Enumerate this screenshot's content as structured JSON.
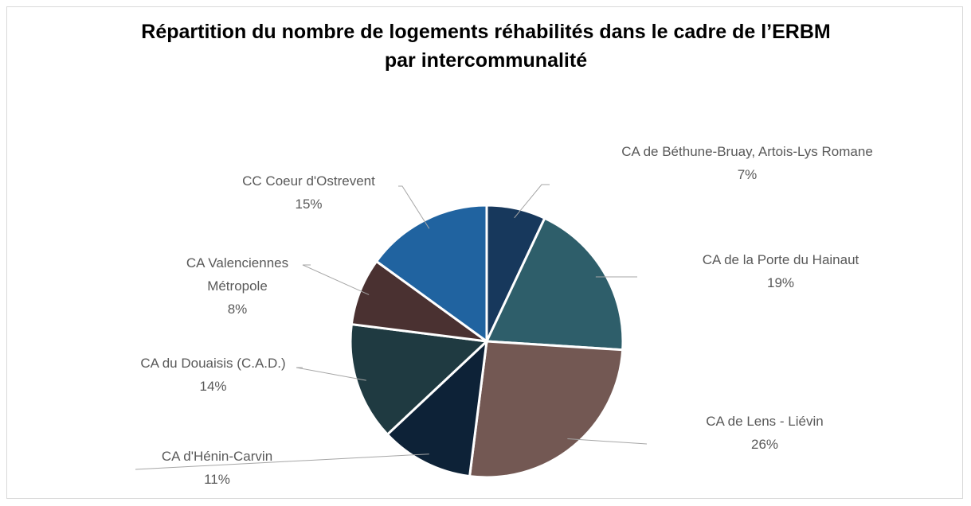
{
  "chart_data": {
    "type": "pie",
    "title": "Répartition du nombre de logements réhabilités dans le cadre de l’ERBM par intercommunalité",
    "categories": [
      "CA de Béthune-Bruay, Artois-Lys Romane",
      "CA de la Porte du Hainaut",
      "CA de Lens - Liévin",
      "CA d'Hénin-Carvin",
      "CA du Douaisis (C.A.D.)",
      "CA Valenciennes Métropole",
      "CC Coeur d'Ostrevent"
    ],
    "values": [
      7,
      19,
      26,
      11,
      14,
      8,
      15
    ],
    "value_labels": [
      "7%",
      "19%",
      "26%",
      "11%",
      "14%",
      "8%",
      "15%"
    ],
    "colors": [
      "#17385c",
      "#2e5e6a",
      "#735853",
      "#0d2237",
      "#1f3a41",
      "#4a3131",
      "#2063a0"
    ]
  }
}
